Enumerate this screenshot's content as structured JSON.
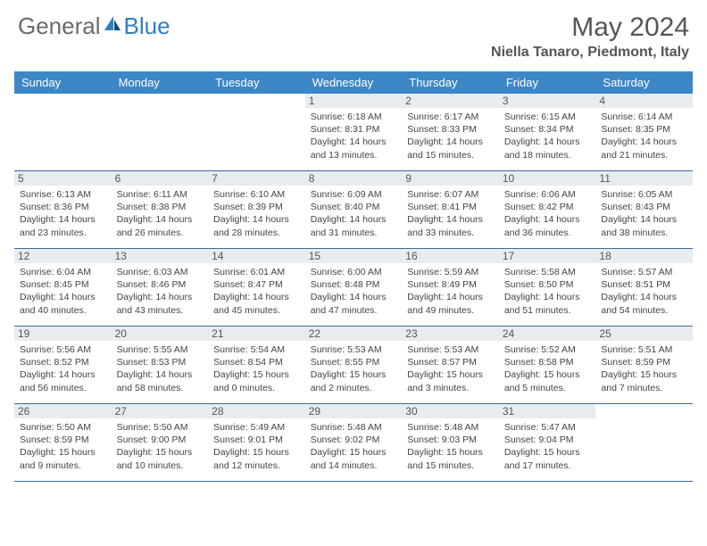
{
  "brand": {
    "part1": "General",
    "part2": "Blue"
  },
  "title": "May 2024",
  "location": "Niella Tanaro, Piedmont, Italy",
  "colors": {
    "header_bg": "#3d87c7",
    "daynum_bg": "#e8ecef",
    "rule": "#3d6b9a",
    "brand_gray": "#6a6a6a",
    "brand_blue": "#2f7fbf"
  },
  "day_names": [
    "Sunday",
    "Monday",
    "Tuesday",
    "Wednesday",
    "Thursday",
    "Friday",
    "Saturday"
  ],
  "weeks": [
    [
      null,
      null,
      null,
      {
        "n": "1",
        "sr": "6:18 AM",
        "ss": "8:31 PM",
        "dl": "14 hours and 13 minutes."
      },
      {
        "n": "2",
        "sr": "6:17 AM",
        "ss": "8:33 PM",
        "dl": "14 hours and 15 minutes."
      },
      {
        "n": "3",
        "sr": "6:15 AM",
        "ss": "8:34 PM",
        "dl": "14 hours and 18 minutes."
      },
      {
        "n": "4",
        "sr": "6:14 AM",
        "ss": "8:35 PM",
        "dl": "14 hours and 21 minutes."
      }
    ],
    [
      {
        "n": "5",
        "sr": "6:13 AM",
        "ss": "8:36 PM",
        "dl": "14 hours and 23 minutes."
      },
      {
        "n": "6",
        "sr": "6:11 AM",
        "ss": "8:38 PM",
        "dl": "14 hours and 26 minutes."
      },
      {
        "n": "7",
        "sr": "6:10 AM",
        "ss": "8:39 PM",
        "dl": "14 hours and 28 minutes."
      },
      {
        "n": "8",
        "sr": "6:09 AM",
        "ss": "8:40 PM",
        "dl": "14 hours and 31 minutes."
      },
      {
        "n": "9",
        "sr": "6:07 AM",
        "ss": "8:41 PM",
        "dl": "14 hours and 33 minutes."
      },
      {
        "n": "10",
        "sr": "6:06 AM",
        "ss": "8:42 PM",
        "dl": "14 hours and 36 minutes."
      },
      {
        "n": "11",
        "sr": "6:05 AM",
        "ss": "8:43 PM",
        "dl": "14 hours and 38 minutes."
      }
    ],
    [
      {
        "n": "12",
        "sr": "6:04 AM",
        "ss": "8:45 PM",
        "dl": "14 hours and 40 minutes."
      },
      {
        "n": "13",
        "sr": "6:03 AM",
        "ss": "8:46 PM",
        "dl": "14 hours and 43 minutes."
      },
      {
        "n": "14",
        "sr": "6:01 AM",
        "ss": "8:47 PM",
        "dl": "14 hours and 45 minutes."
      },
      {
        "n": "15",
        "sr": "6:00 AM",
        "ss": "8:48 PM",
        "dl": "14 hours and 47 minutes."
      },
      {
        "n": "16",
        "sr": "5:59 AM",
        "ss": "8:49 PM",
        "dl": "14 hours and 49 minutes."
      },
      {
        "n": "17",
        "sr": "5:58 AM",
        "ss": "8:50 PM",
        "dl": "14 hours and 51 minutes."
      },
      {
        "n": "18",
        "sr": "5:57 AM",
        "ss": "8:51 PM",
        "dl": "14 hours and 54 minutes."
      }
    ],
    [
      {
        "n": "19",
        "sr": "5:56 AM",
        "ss": "8:52 PM",
        "dl": "14 hours and 56 minutes."
      },
      {
        "n": "20",
        "sr": "5:55 AM",
        "ss": "8:53 PM",
        "dl": "14 hours and 58 minutes."
      },
      {
        "n": "21",
        "sr": "5:54 AM",
        "ss": "8:54 PM",
        "dl": "15 hours and 0 minutes."
      },
      {
        "n": "22",
        "sr": "5:53 AM",
        "ss": "8:55 PM",
        "dl": "15 hours and 2 minutes."
      },
      {
        "n": "23",
        "sr": "5:53 AM",
        "ss": "8:57 PM",
        "dl": "15 hours and 3 minutes."
      },
      {
        "n": "24",
        "sr": "5:52 AM",
        "ss": "8:58 PM",
        "dl": "15 hours and 5 minutes."
      },
      {
        "n": "25",
        "sr": "5:51 AM",
        "ss": "8:59 PM",
        "dl": "15 hours and 7 minutes."
      }
    ],
    [
      {
        "n": "26",
        "sr": "5:50 AM",
        "ss": "8:59 PM",
        "dl": "15 hours and 9 minutes."
      },
      {
        "n": "27",
        "sr": "5:50 AM",
        "ss": "9:00 PM",
        "dl": "15 hours and 10 minutes."
      },
      {
        "n": "28",
        "sr": "5:49 AM",
        "ss": "9:01 PM",
        "dl": "15 hours and 12 minutes."
      },
      {
        "n": "29",
        "sr": "5:48 AM",
        "ss": "9:02 PM",
        "dl": "15 hours and 14 minutes."
      },
      {
        "n": "30",
        "sr": "5:48 AM",
        "ss": "9:03 PM",
        "dl": "15 hours and 15 minutes."
      },
      {
        "n": "31",
        "sr": "5:47 AM",
        "ss": "9:04 PM",
        "dl": "15 hours and 17 minutes."
      },
      null
    ]
  ],
  "labels": {
    "sunrise": "Sunrise:",
    "sunset": "Sunset:",
    "daylight": "Daylight:"
  }
}
